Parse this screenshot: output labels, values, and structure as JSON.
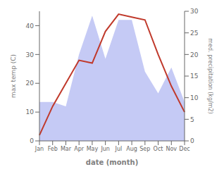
{
  "chart_data": {
    "type": "line",
    "categories": [
      "Jan",
      "Feb",
      "Mar",
      "Apr",
      "May",
      "Jun",
      "Jul",
      "Aug",
      "Sep",
      "Oct",
      "Nov",
      "Dec"
    ],
    "xlabel": "date (month)",
    "ylabel": "max temp (C)",
    "y2label": "med. precipitation (kg/m2)",
    "ylim": [
      0,
      45
    ],
    "yticks": [
      0,
      10,
      20,
      30,
      40
    ],
    "y2lim": [
      0,
      30
    ],
    "y2ticks": [
      0,
      5,
      10,
      15,
      20,
      25,
      30
    ],
    "grid": false,
    "series": [
      {
        "type": "area",
        "color": "#c5caf5",
        "axis": "y2",
        "values": [
          9,
          9,
          8,
          20,
          29,
          19,
          28,
          28,
          16,
          11,
          17,
          9
        ]
      },
      {
        "type": "line",
        "color": "#c0392b",
        "values": [
          2,
          12,
          20,
          28,
          27,
          38,
          44,
          43,
          42,
          30,
          19,
          10
        ]
      }
    ]
  }
}
